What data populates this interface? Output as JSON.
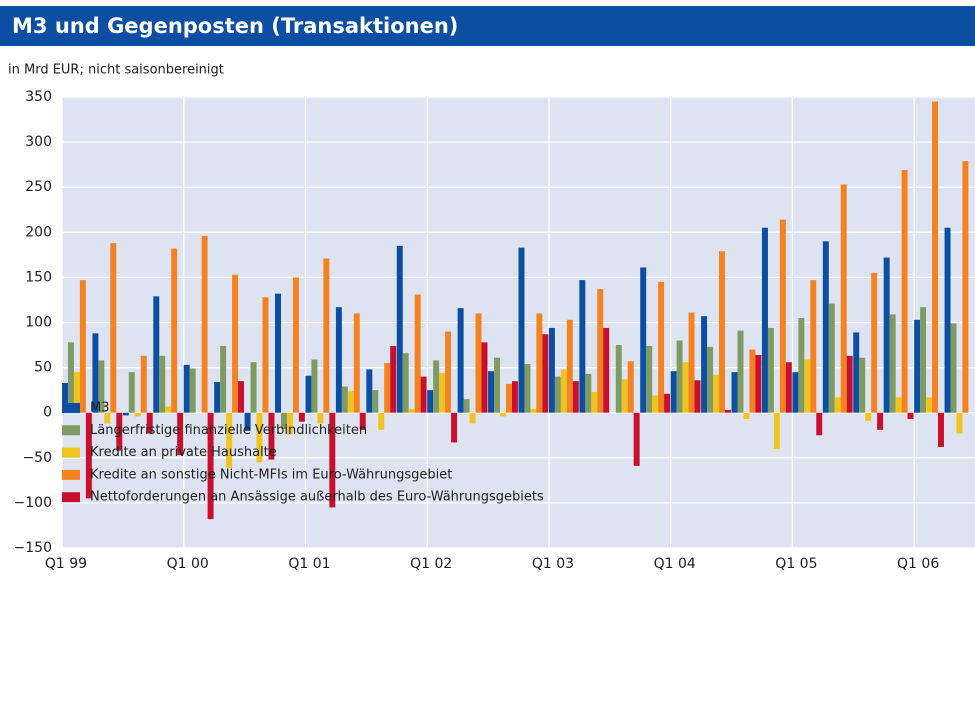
{
  "chart_data": {
    "type": "bar",
    "title": "M3 und Gegenposten (Transaktionen)",
    "subtitle": "in Mrd EUR; nicht saisonbereinigt",
    "categories": [
      "Q1 99",
      null,
      null,
      null,
      "Q1 00",
      null,
      null,
      null,
      "Q1 01",
      null,
      null,
      null,
      "Q1 02",
      null,
      null,
      null,
      "Q1 03",
      null,
      null,
      null,
      "Q1 04",
      null,
      null,
      null,
      "Q1 05",
      null,
      null,
      null,
      "Q1 06",
      null
    ],
    "series": [
      {
        "name": "M3",
        "color": "#0b4ea2",
        "values": [
          33,
          88,
          -3,
          129,
          53,
          34,
          -20,
          132,
          41,
          117,
          48,
          185,
          25,
          116,
          46,
          183,
          94,
          147,
          0,
          161,
          46,
          107,
          45,
          205,
          45,
          190,
          89,
          172,
          103,
          205
        ]
      },
      {
        "name": "Längerfristige finanzielle Verbindlichkeiten",
        "color": "#7d9b62",
        "values": [
          78,
          58,
          45,
          63,
          49,
          74,
          56,
          -18,
          59,
          29,
          25,
          66,
          58,
          15,
          61,
          54,
          40,
          43,
          75,
          74,
          80,
          73,
          91,
          94,
          105,
          121,
          61,
          109,
          117,
          99
        ]
      },
      {
        "name": "Kredite an private Haushalte",
        "color": "#f0c420",
        "values": [
          45,
          -12,
          -4,
          7,
          0,
          -61,
          -55,
          -24,
          -12,
          24,
          -19,
          4,
          44,
          -12,
          -4,
          4,
          48,
          23,
          37,
          19,
          56,
          42,
          -7,
          -40,
          59,
          17,
          -9,
          17,
          17,
          -23
        ]
      },
      {
        "name": "Kredite an sonstige Nicht-MFIs im Euro-Währungsgebiet",
        "color": "#f58220",
        "values": [
          147,
          188,
          63,
          182,
          196,
          153,
          128,
          150,
          171,
          110,
          55,
          131,
          90,
          110,
          32,
          110,
          103,
          137,
          57,
          145,
          111,
          179,
          70,
          214,
          147,
          253,
          155,
          269,
          345,
          279
        ]
      },
      {
        "name": "Nettoforderungen an Ansässige außerhalb des Euro-Währungsgebiets",
        "color": "#c8102e",
        "values": [
          -95,
          -42,
          -23,
          -47,
          -118,
          35,
          -52,
          -10,
          -105,
          -19,
          74,
          40,
          -33,
          78,
          35,
          87,
          35,
          94,
          -59,
          21,
          36,
          3,
          64,
          56,
          -25,
          63,
          -19,
          -7,
          -38,
          null
        ]
      }
    ],
    "ylim": [
      -150,
      350
    ],
    "yticks": [
      {
        "value": -150,
        "label": "−150"
      },
      {
        "value": -100,
        "label": "−100"
      },
      {
        "value": -50,
        "label": "−50"
      },
      0,
      50,
      100,
      150,
      200,
      250,
      300,
      350
    ],
    "grid": true,
    "plot_background": "#dde3f0",
    "title_background": "#0b4ea2"
  }
}
